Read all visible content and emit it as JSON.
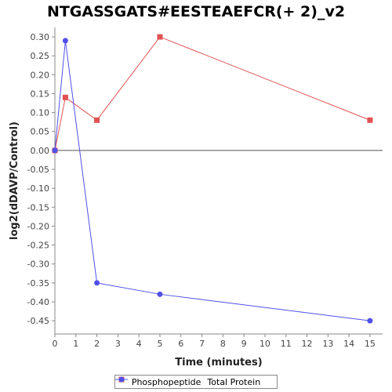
{
  "chart_data": {
    "type": "line",
    "title": "NTGASSGATS#EESTEAEFCR(+ 2)_v2",
    "xlabel": "Time (minutes)",
    "ylabel": "log2(dDAVP/Control)",
    "xlim": [
      0,
      15.6
    ],
    "ylim": [
      -0.485,
      0.325
    ],
    "xticks": [
      0,
      1,
      2,
      3,
      4,
      5,
      6,
      7,
      8,
      9,
      10,
      11,
      12,
      13,
      14,
      15
    ],
    "yticks": [
      0.3,
      0.25,
      0.2,
      0.15,
      0.1,
      0.05,
      0.0,
      -0.05,
      -0.1,
      -0.15,
      -0.2,
      -0.25,
      -0.3,
      -0.35,
      -0.4,
      -0.45
    ],
    "ytick_labels": [
      "0.30",
      "0.25",
      "0.20",
      "0.15",
      "0.10",
      "0.05",
      "0.00",
      "-0.05",
      "-0.10",
      "-0.15",
      "-0.20",
      "-0.25",
      "-0.30",
      "-0.35",
      "-0.40",
      "-0.45"
    ],
    "grid": false,
    "zero_line": true,
    "legend_position": "bottom-center",
    "series": [
      {
        "name": "Phosphopeptide",
        "color": "#e05252",
        "marker": "square",
        "x": [
          0,
          0.5,
          2,
          5,
          15
        ],
        "y": [
          0.0,
          0.14,
          0.08,
          0.3,
          0.08
        ]
      },
      {
        "name": "Total Protein",
        "color": "#5050e8",
        "marker": "circle",
        "x": [
          0,
          0.5,
          2,
          5,
          15
        ],
        "y": [
          0.0,
          0.29,
          -0.35,
          -0.38,
          -0.45
        ]
      }
    ]
  }
}
